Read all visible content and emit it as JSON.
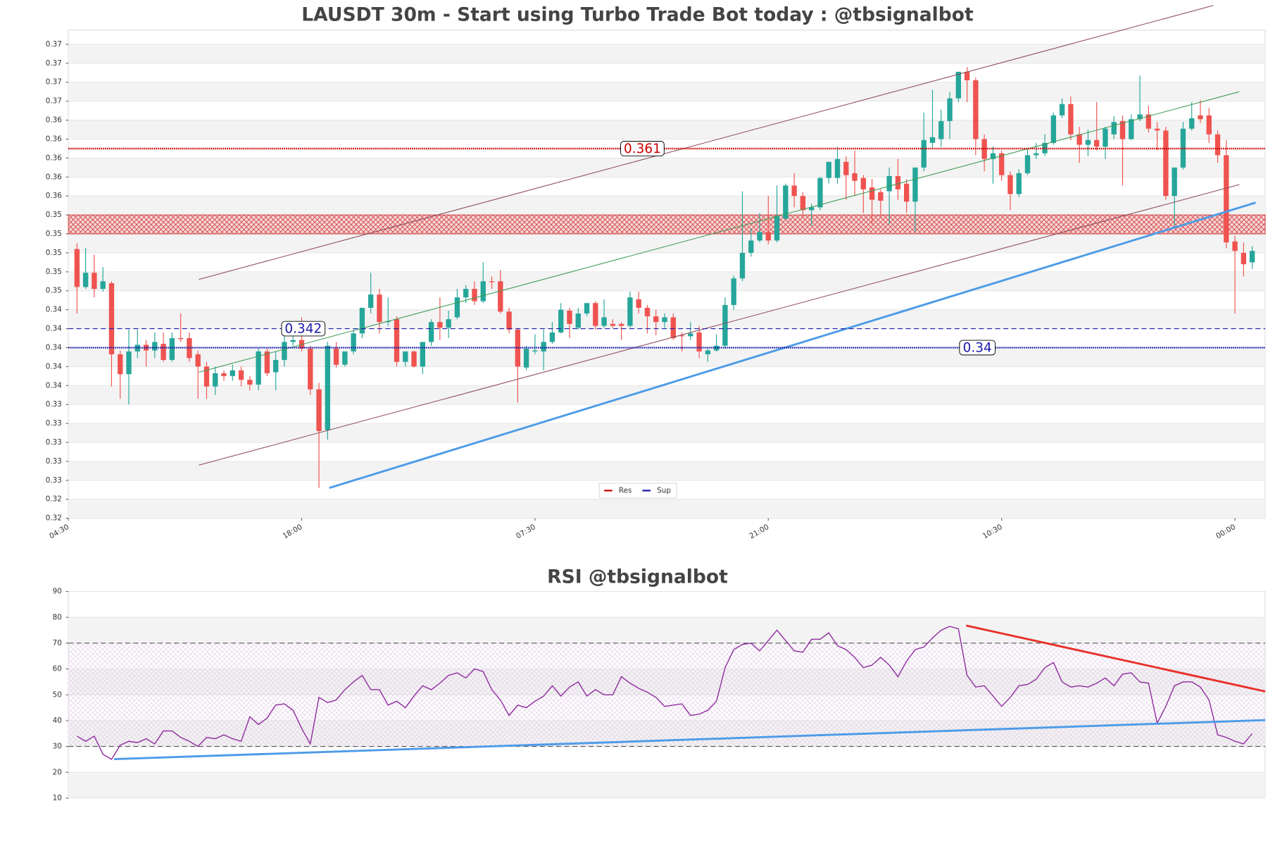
{
  "chart_data": [
    {
      "type": "candlestick",
      "title": "LAUSDT 30m - Start using Turbo Trade Bot today : @tbsignalbot",
      "up_color": "#26a69a",
      "down_color": "#ef5350",
      "candles": [
        [
          0.3504,
          0.351,
          0.3436,
          0.3464
        ],
        [
          0.3464,
          0.3505,
          0.3462,
          0.3479
        ],
        [
          0.3479,
          0.3498,
          0.3453,
          0.3462
        ],
        [
          0.3462,
          0.3485,
          0.3459,
          0.347
        ],
        [
          0.3468,
          0.347,
          0.3359,
          0.3393
        ],
        [
          0.3393,
          0.3397,
          0.3346,
          0.3372
        ],
        [
          0.3372,
          0.3419,
          0.334,
          0.3396
        ],
        [
          0.3396,
          0.3419,
          0.3389,
          0.3403
        ],
        [
          0.3403,
          0.3408,
          0.338,
          0.3397
        ],
        [
          0.3397,
          0.3416,
          0.3389,
          0.3406
        ],
        [
          0.3404,
          0.3416,
          0.3385,
          0.3387
        ],
        [
          0.3387,
          0.3416,
          0.3385,
          0.341
        ],
        [
          0.341,
          0.3436,
          0.3406,
          0.3409
        ],
        [
          0.341,
          0.3416,
          0.3385,
          0.3389
        ],
        [
          0.3393,
          0.3397,
          0.3346,
          0.338
        ],
        [
          0.338,
          0.3385,
          0.3346,
          0.3359
        ],
        [
          0.3359,
          0.338,
          0.335,
          0.3373
        ],
        [
          0.3373,
          0.3376,
          0.3365,
          0.337
        ],
        [
          0.337,
          0.3382,
          0.3365,
          0.3376
        ],
        [
          0.3376,
          0.338,
          0.3359,
          0.3366
        ],
        [
          0.3366,
          0.337,
          0.3355,
          0.3361
        ],
        [
          0.3361,
          0.3399,
          0.3355,
          0.3396
        ],
        [
          0.3396,
          0.3399,
          0.337,
          0.3373
        ],
        [
          0.3374,
          0.3396,
          0.3355,
          0.3387
        ],
        [
          0.3387,
          0.3414,
          0.338,
          0.3406
        ],
        [
          0.3406,
          0.3414,
          0.3402,
          0.3408
        ],
        [
          0.3408,
          0.3432,
          0.3396,
          0.3399
        ],
        [
          0.3399,
          0.3402,
          0.335,
          0.3356
        ],
        [
          0.3356,
          0.3363,
          0.3252,
          0.3312
        ],
        [
          0.3313,
          0.3406,
          0.3303,
          0.3402
        ],
        [
          0.3399,
          0.3406,
          0.3379,
          0.3382
        ],
        [
          0.3382,
          0.3396,
          0.338,
          0.3396
        ],
        [
          0.3396,
          0.3419,
          0.3393,
          0.3415
        ],
        [
          0.3415,
          0.3442,
          0.341,
          0.3442
        ],
        [
          0.3442,
          0.3479,
          0.3436,
          0.3456
        ],
        [
          0.3456,
          0.3462,
          0.3415,
          0.3427
        ],
        [
          0.3427,
          0.3453,
          0.3423,
          0.3428
        ],
        [
          0.343,
          0.3433,
          0.338,
          0.3385
        ],
        [
          0.3385,
          0.3396,
          0.338,
          0.3396
        ],
        [
          0.3396,
          0.3397,
          0.3379,
          0.338
        ],
        [
          0.338,
          0.3406,
          0.3372,
          0.3406
        ],
        [
          0.3406,
          0.343,
          0.3402,
          0.3427
        ],
        [
          0.3427,
          0.3453,
          0.3408,
          0.3421
        ],
        [
          0.3421,
          0.3439,
          0.341,
          0.343
        ],
        [
          0.3432,
          0.3462,
          0.343,
          0.3453
        ],
        [
          0.3453,
          0.3466,
          0.3447,
          0.3462
        ],
        [
          0.3462,
          0.347,
          0.3445,
          0.3449
        ],
        [
          0.3449,
          0.349,
          0.3447,
          0.347
        ],
        [
          0.347,
          0.3475,
          0.3462,
          0.3469
        ],
        [
          0.347,
          0.3482,
          0.3436,
          0.3438
        ],
        [
          0.3438,
          0.3442,
          0.3415,
          0.3419
        ],
        [
          0.3419,
          0.3421,
          0.3342,
          0.338
        ],
        [
          0.3379,
          0.3402,
          0.3376,
          0.3399
        ],
        [
          0.3396,
          0.3414,
          0.3393,
          0.3397
        ],
        [
          0.3396,
          0.3419,
          0.3376,
          0.3406
        ],
        [
          0.3406,
          0.3427,
          0.3404,
          0.3416
        ],
        [
          0.3416,
          0.3447,
          0.3415,
          0.344
        ],
        [
          0.3439,
          0.3442,
          0.341,
          0.3425
        ],
        [
          0.3421,
          0.3442,
          0.3419,
          0.3436
        ],
        [
          0.3436,
          0.3447,
          0.3433,
          0.3447
        ],
        [
          0.3447,
          0.3449,
          0.3419,
          0.3423
        ],
        [
          0.3423,
          0.3451,
          0.3421,
          0.3432
        ],
        [
          0.3425,
          0.343,
          0.3421,
          0.3423
        ],
        [
          0.3425,
          0.3427,
          0.3408,
          0.3423
        ],
        [
          0.3423,
          0.3459,
          0.3421,
          0.3453
        ],
        [
          0.3451,
          0.3459,
          0.3436,
          0.3442
        ],
        [
          0.3442,
          0.3445,
          0.3415,
          0.3433
        ],
        [
          0.3433,
          0.344,
          0.3413,
          0.3427
        ],
        [
          0.3427,
          0.3436,
          0.3421,
          0.3432
        ],
        [
          0.3432,
          0.3436,
          0.3408,
          0.341
        ],
        [
          0.3413,
          0.3416,
          0.3396,
          0.3412
        ],
        [
          0.3412,
          0.3427,
          0.3408,
          0.3415
        ],
        [
          0.3416,
          0.3423,
          0.3389,
          0.3396
        ],
        [
          0.3393,
          0.3399,
          0.3385,
          0.3397
        ],
        [
          0.3397,
          0.3414,
          0.3396,
          0.3402
        ],
        [
          0.3402,
          0.3453,
          0.3399,
          0.3445
        ],
        [
          0.3445,
          0.3476,
          0.344,
          0.3473
        ],
        [
          0.3473,
          0.3565,
          0.347,
          0.35
        ],
        [
          0.35,
          0.3526,
          0.3496,
          0.3513
        ],
        [
          0.3513,
          0.3542,
          0.3511,
          0.3522
        ],
        [
          0.3522,
          0.356,
          0.3509,
          0.3513
        ],
        [
          0.3513,
          0.3571,
          0.3511,
          0.3539
        ],
        [
          0.3536,
          0.3573,
          0.3535,
          0.3571
        ],
        [
          0.3571,
          0.3584,
          0.3548,
          0.356
        ],
        [
          0.356,
          0.3564,
          0.3539,
          0.3545
        ],
        [
          0.3545,
          0.3552,
          0.3528,
          0.3548
        ],
        [
          0.3548,
          0.358,
          0.3545,
          0.3579
        ],
        [
          0.3579,
          0.3596,
          0.3573,
          0.3596
        ],
        [
          0.3579,
          0.3612,
          0.3573,
          0.3599
        ],
        [
          0.3596,
          0.3602,
          0.3556,
          0.3582
        ],
        [
          0.3584,
          0.3608,
          0.356,
          0.3576
        ],
        [
          0.3579,
          0.3582,
          0.3542,
          0.3567
        ],
        [
          0.3569,
          0.3578,
          0.353,
          0.3556
        ],
        [
          0.3564,
          0.3567,
          0.3539,
          0.3555
        ],
        [
          0.3565,
          0.359,
          0.353,
          0.3581
        ],
        [
          0.3581,
          0.3599,
          0.3556,
          0.3567
        ],
        [
          0.3573,
          0.3578,
          0.3542,
          0.3554
        ],
        [
          0.3554,
          0.359,
          0.3522,
          0.359
        ],
        [
          0.359,
          0.3648,
          0.3586,
          0.3619
        ],
        [
          0.3616,
          0.3672,
          0.361,
          0.3622
        ],
        [
          0.362,
          0.3651,
          0.3612,
          0.3639
        ],
        [
          0.3639,
          0.367,
          0.362,
          0.3663
        ],
        [
          0.3663,
          0.3691,
          0.3659,
          0.3691
        ],
        [
          0.3691,
          0.3696,
          0.3659,
          0.3682
        ],
        [
          0.3682,
          0.3685,
          0.3603,
          0.362
        ],
        [
          0.362,
          0.3625,
          0.3586,
          0.3599
        ],
        [
          0.3599,
          0.3612,
          0.3573,
          0.3605
        ],
        [
          0.3605,
          0.3608,
          0.3576,
          0.3582
        ],
        [
          0.3582,
          0.3586,
          0.3545,
          0.3562
        ],
        [
          0.3562,
          0.3588,
          0.3559,
          0.3584
        ],
        [
          0.3584,
          0.361,
          0.3582,
          0.3603
        ],
        [
          0.3603,
          0.3616,
          0.3599,
          0.3605
        ],
        [
          0.3605,
          0.3625,
          0.3602,
          0.3616
        ],
        [
          0.3616,
          0.3648,
          0.3614,
          0.3645
        ],
        [
          0.3645,
          0.3663,
          0.3642,
          0.3657
        ],
        [
          0.3657,
          0.3665,
          0.3619,
          0.3625
        ],
        [
          0.3625,
          0.3633,
          0.3595,
          0.3614
        ],
        [
          0.3614,
          0.363,
          0.3602,
          0.3619
        ],
        [
          0.3619,
          0.3659,
          0.3608,
          0.3612
        ],
        [
          0.3612,
          0.3633,
          0.3599,
          0.3631
        ],
        [
          0.3625,
          0.3644,
          0.362,
          0.3638
        ],
        [
          0.3639,
          0.3645,
          0.3571,
          0.362
        ],
        [
          0.362,
          0.3646,
          0.3619,
          0.3641
        ],
        [
          0.3641,
          0.3687,
          0.3639,
          0.3646
        ],
        [
          0.3646,
          0.3655,
          0.3627,
          0.3631
        ],
        [
          0.3631,
          0.3638,
          0.3608,
          0.3629
        ],
        [
          0.3629,
          0.3633,
          0.3556,
          0.356
        ],
        [
          0.356,
          0.359,
          0.3526,
          0.359
        ],
        [
          0.359,
          0.3638,
          0.3588,
          0.3631
        ],
        [
          0.3631,
          0.3659,
          0.3629,
          0.3642
        ],
        [
          0.3645,
          0.3661,
          0.3637,
          0.3641
        ],
        [
          0.3645,
          0.3653,
          0.3616,
          0.3625
        ],
        [
          0.3625,
          0.3629,
          0.3595,
          0.3603
        ],
        [
          0.3603,
          0.3619,
          0.3505,
          0.3511
        ],
        [
          0.3512,
          0.3518,
          0.3436,
          0.3502
        ],
        [
          0.35,
          0.3511,
          0.3475,
          0.3488
        ],
        [
          0.349,
          0.3507,
          0.3483,
          0.3502
        ]
      ],
      "xlim": [
        -1,
        137.5
      ],
      "xticks": [
        {
          "value": -1,
          "label": "04:30"
        },
        {
          "value": 26,
          "label": "18:00"
        },
        {
          "value": 53,
          "label": "07:30"
        },
        {
          "value": 80,
          "label": "21:00"
        },
        {
          "value": 107,
          "label": "10:30"
        },
        {
          "value": 134,
          "label": "00:00"
        }
      ],
      "ylim": [
        0.322,
        0.3735
      ],
      "yticks": [
        {
          "value": 0.322,
          "label": "0.32"
        },
        {
          "value": 0.324,
          "label": "0.32"
        },
        {
          "value": 0.326,
          "label": "0.33"
        },
        {
          "value": 0.328,
          "label": "0.33"
        },
        0.33,
        {
          "value": 0.332,
          "label": "0.33"
        },
        {
          "value": 0.334,
          "label": "0.33"
        },
        {
          "value": 0.336,
          "label": "0.34"
        },
        {
          "value": 0.338,
          "label": "0.34"
        },
        0.34,
        {
          "value": 0.342,
          "label": "0.34"
        },
        {
          "value": 0.344,
          "label": "0.34"
        },
        {
          "value": 0.346,
          "label": "0.35"
        },
        {
          "value": 0.348,
          "label": "0.35"
        },
        0.35,
        {
          "value": 0.352,
          "label": "0.35"
        },
        {
          "value": 0.354,
          "label": "0.35"
        },
        {
          "value": 0.356,
          "label": "0.36"
        },
        {
          "value": 0.358,
          "label": "0.36"
        },
        0.36,
        {
          "value": 0.362,
          "label": "0.36"
        },
        {
          "value": 0.364,
          "label": "0.36"
        },
        {
          "value": 0.366,
          "label": "0.37"
        },
        {
          "value": 0.368,
          "label": "0.37"
        },
        0.37,
        {
          "value": 0.372,
          "label": "0.37"
        }
      ],
      "zone": [
        0.352,
        0.354
      ],
      "resistance": [
        0.361
      ],
      "supports": [
        0.342,
        0.34
      ],
      "series": [
        {
          "name": "Res",
          "color": "#cc0000"
        },
        {
          "name": "Sup",
          "color": "#1a1aaa"
        }
      ],
      "trendlines": [
        {
          "color": "#8b4a5a",
          "x": [
            14.1,
            131.5
          ],
          "y": [
            0.3472,
            0.3761
          ]
        },
        {
          "color": "#8b4a5a",
          "x": [
            14.1,
            134.5
          ],
          "y": [
            0.3276,
            0.3572
          ]
        },
        {
          "color": "#3a9a50",
          "x": [
            14.1,
            134.5
          ],
          "y": [
            0.3374,
            0.367
          ]
        },
        {
          "color": "#4c9be8",
          "x": [
            29.2,
            136.4
          ],
          "y": [
            0.3252,
            0.3553
          ]
        }
      ]
    },
    {
      "type": "line",
      "title": "RSI @tbsignalbot",
      "color": "#8e2a9e",
      "values": [
        34,
        32,
        34,
        27,
        25,
        30.5,
        32,
        31.5,
        33,
        31,
        36,
        36,
        33.5,
        32,
        30,
        33.5,
        33,
        34.5,
        33,
        32,
        41.5,
        38.5,
        41,
        46,
        46.5,
        44,
        37,
        31,
        49,
        47,
        48,
        52,
        55,
        57.5,
        52,
        52,
        46,
        47.5,
        45,
        49.5,
        53.5,
        52,
        54.5,
        57.5,
        58.5,
        56.5,
        60,
        59,
        52,
        48,
        42,
        46,
        45,
        47.5,
        49.5,
        53.5,
        49.5,
        53,
        55,
        49.5,
        52,
        50,
        50,
        57,
        54.5,
        52.5,
        51,
        49,
        45.5,
        46,
        46.5,
        42,
        42.5,
        44,
        47.5,
        60.5,
        67.5,
        69.5,
        70,
        67,
        71,
        75,
        71,
        67,
        66.5,
        71.5,
        71.5,
        74,
        69,
        67.5,
        64.5,
        60.5,
        61.5,
        64.5,
        61.5,
        57,
        63,
        67.5,
        68.5,
        72,
        75,
        76.5,
        75.5,
        57.5,
        53,
        53.5,
        49.5,
        45.5,
        49,
        53.5,
        54,
        56,
        60.5,
        62.5,
        55,
        53,
        53.5,
        53,
        54.5,
        56.5,
        53.5,
        58,
        58.5,
        55,
        54.5,
        39,
        45.5,
        53.5,
        55,
        55,
        53,
        48,
        34.5,
        33.5,
        32,
        31,
        35
      ],
      "xlim": [
        -1,
        137.5
      ],
      "ylim": [
        10,
        90
      ],
      "yticks": [
        10,
        20,
        30,
        40,
        50,
        60,
        70,
        80,
        90
      ],
      "levels": [
        70,
        30
      ],
      "band": [
        30,
        70
      ],
      "trendlines": [
        {
          "color": "#e8302a",
          "x": [
            102.9,
            137.5
          ],
          "y": [
            76.8,
            51.3
          ]
        },
        {
          "color": "#4c9be8",
          "x": [
            4.3,
            137.5
          ],
          "y": [
            25.1,
            40.2
          ]
        }
      ]
    }
  ]
}
